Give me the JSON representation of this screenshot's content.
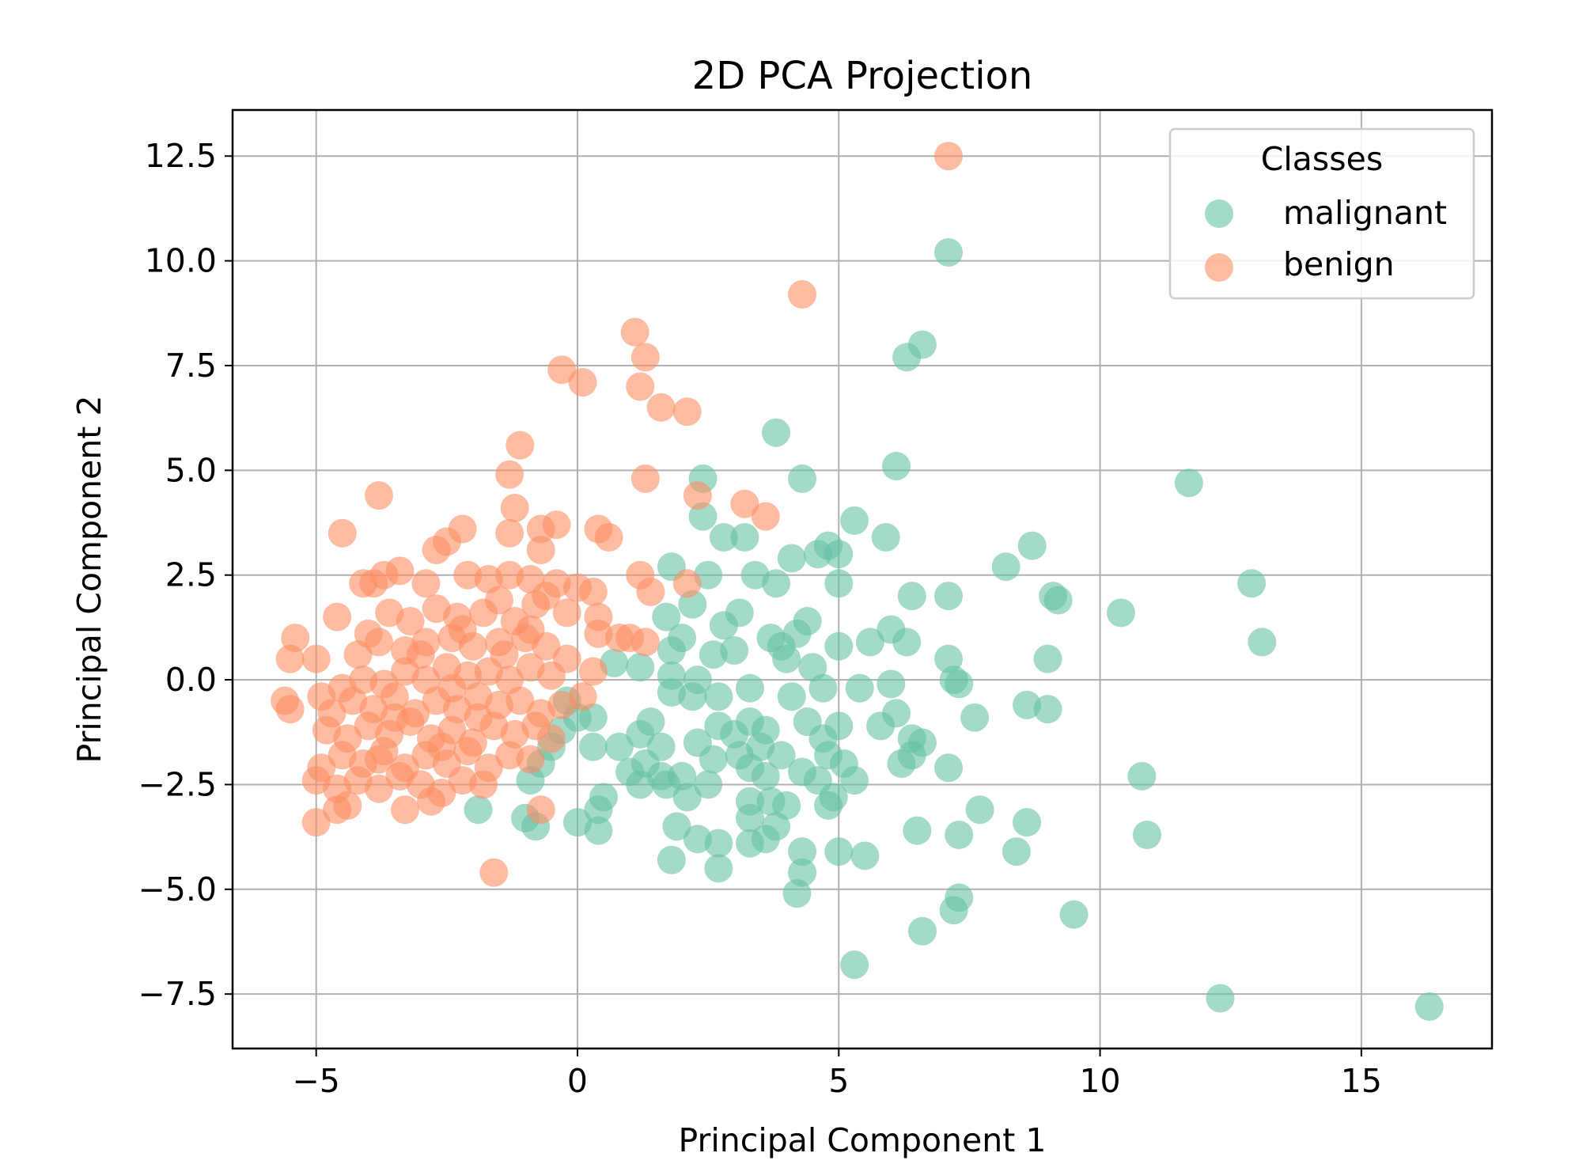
{
  "chart_data": {
    "type": "scatter",
    "title": "2D PCA Projection",
    "xlabel": "Principal Component 1",
    "ylabel": "Principal Component 2",
    "xlim": [
      -6.6,
      17.5
    ],
    "ylim": [
      -8.8,
      13.6
    ],
    "xticks": [
      -5,
      0,
      5,
      10,
      15
    ],
    "xtick_labels": [
      "−5",
      "0",
      "5",
      "10",
      "15"
    ],
    "yticks": [
      -7.5,
      -5.0,
      -2.5,
      0.0,
      2.5,
      5.0,
      7.5,
      10.0,
      12.5
    ],
    "ytick_labels": [
      "−7.5",
      "−5.0",
      "−2.5",
      "0.0",
      "2.5",
      "5.0",
      "7.5",
      "10.0",
      "12.5"
    ],
    "grid": true,
    "legend_title": "Classes",
    "legend_position": "top-right",
    "series": [
      {
        "name": "malignant",
        "color": "#66c2a5",
        "points": [
          [
            7.1,
            10.2
          ],
          [
            6.6,
            8.0
          ],
          [
            6.3,
            7.7
          ],
          [
            3.8,
            5.9
          ],
          [
            2.4,
            4.8
          ],
          [
            4.3,
            4.8
          ],
          [
            6.1,
            5.1
          ],
          [
            11.7,
            4.7
          ],
          [
            2.4,
            3.9
          ],
          [
            2.8,
            3.4
          ],
          [
            3.2,
            3.4
          ],
          [
            5.3,
            3.8
          ],
          [
            5.9,
            3.4
          ],
          [
            8.7,
            3.2
          ],
          [
            4.8,
            3.2
          ],
          [
            4.6,
            3.0
          ],
          [
            5.0,
            3.0
          ],
          [
            4.1,
            2.9
          ],
          [
            8.2,
            2.7
          ],
          [
            1.8,
            2.7
          ],
          [
            2.5,
            2.5
          ],
          [
            3.4,
            2.5
          ],
          [
            3.8,
            2.3
          ],
          [
            5.0,
            2.3
          ],
          [
            12.9,
            2.3
          ],
          [
            6.4,
            2.0
          ],
          [
            7.1,
            2.0
          ],
          [
            9.1,
            2.0
          ],
          [
            9.2,
            1.9
          ],
          [
            10.4,
            1.6
          ],
          [
            2.2,
            1.8
          ],
          [
            3.1,
            1.6
          ],
          [
            1.7,
            1.5
          ],
          [
            4.4,
            1.4
          ],
          [
            2.8,
            1.3
          ],
          [
            3.7,
            1.0
          ],
          [
            4.2,
            1.1
          ],
          [
            5.6,
            0.9
          ],
          [
            6.3,
            0.9
          ],
          [
            13.1,
            0.9
          ],
          [
            5.0,
            0.8
          ],
          [
            6.0,
            1.2
          ],
          [
            2.0,
            1.0
          ],
          [
            3.0,
            0.7
          ],
          [
            3.9,
            0.8
          ],
          [
            1.8,
            0.7
          ],
          [
            2.6,
            0.6
          ],
          [
            4.0,
            0.5
          ],
          [
            4.5,
            0.3
          ],
          [
            1.2,
            0.3
          ],
          [
            0.7,
            0.4
          ],
          [
            9.0,
            0.5
          ],
          [
            7.1,
            0.5
          ],
          [
            7.2,
            0.0
          ],
          [
            7.3,
            -0.1
          ],
          [
            1.8,
            0.1
          ],
          [
            2.3,
            0.0
          ],
          [
            6.0,
            -0.1
          ],
          [
            3.3,
            -0.2
          ],
          [
            4.7,
            -0.2
          ],
          [
            5.4,
            -0.2
          ],
          [
            1.8,
            -0.3
          ],
          [
            2.2,
            -0.4
          ],
          [
            2.7,
            -0.4
          ],
          [
            4.1,
            -0.4
          ],
          [
            6.1,
            -0.8
          ],
          [
            7.6,
            -0.9
          ],
          [
            8.6,
            -0.6
          ],
          [
            9.0,
            -0.7
          ],
          [
            0.3,
            -0.9
          ],
          [
            1.4,
            -1.0
          ],
          [
            2.7,
            -1.1
          ],
          [
            3.3,
            -1.0
          ],
          [
            4.4,
            -1.0
          ],
          [
            5.0,
            -1.1
          ],
          [
            5.8,
            -1.1
          ],
          [
            1.2,
            -1.3
          ],
          [
            2.3,
            -1.5
          ],
          [
            3.0,
            -1.3
          ],
          [
            3.6,
            -1.2
          ],
          [
            4.7,
            -1.4
          ],
          [
            6.4,
            -1.4
          ],
          [
            6.6,
            -1.5
          ],
          [
            0.3,
            -1.6
          ],
          [
            0.8,
            -1.6
          ],
          [
            1.6,
            -1.6
          ],
          [
            2.6,
            -1.9
          ],
          [
            3.1,
            -1.8
          ],
          [
            3.5,
            -1.6
          ],
          [
            3.9,
            -1.8
          ],
          [
            4.8,
            -1.8
          ],
          [
            5.1,
            -2.0
          ],
          [
            6.2,
            -2.0
          ],
          [
            6.4,
            -1.8
          ],
          [
            7.1,
            -2.1
          ],
          [
            1.0,
            -2.2
          ],
          [
            1.3,
            -2.0
          ],
          [
            1.6,
            -2.3
          ],
          [
            2.0,
            -2.3
          ],
          [
            3.3,
            -2.1
          ],
          [
            3.6,
            -2.3
          ],
          [
            4.3,
            -2.2
          ],
          [
            4.6,
            -2.4
          ],
          [
            5.3,
            -2.4
          ],
          [
            1.2,
            -2.5
          ],
          [
            1.7,
            -2.5
          ],
          [
            2.5,
            -2.5
          ],
          [
            2.1,
            -2.8
          ],
          [
            3.3,
            -2.9
          ],
          [
            3.7,
            -2.9
          ],
          [
            4.0,
            -3.0
          ],
          [
            4.9,
            -2.8
          ],
          [
            4.8,
            -3.0
          ],
          [
            -1.9,
            -3.1
          ],
          [
            -1.0,
            -3.3
          ],
          [
            -0.8,
            -3.5
          ],
          [
            0.0,
            -3.4
          ],
          [
            0.4,
            -3.1
          ],
          [
            0.4,
            -3.6
          ],
          [
            0.5,
            -2.8
          ],
          [
            1.9,
            -3.5
          ],
          [
            2.3,
            -3.8
          ],
          [
            2.7,
            -3.9
          ],
          [
            3.3,
            -3.3
          ],
          [
            3.8,
            -3.5
          ],
          [
            6.5,
            -3.6
          ],
          [
            7.3,
            -3.7
          ],
          [
            7.7,
            -3.1
          ],
          [
            8.4,
            -4.1
          ],
          [
            8.6,
            -3.4
          ],
          [
            10.8,
            -2.3
          ],
          [
            10.9,
            -3.7
          ],
          [
            1.8,
            -4.3
          ],
          [
            2.7,
            -4.5
          ],
          [
            3.3,
            -3.9
          ],
          [
            3.6,
            -3.8
          ],
          [
            4.3,
            -4.1
          ],
          [
            4.3,
            -4.6
          ],
          [
            4.2,
            -5.1
          ],
          [
            5.0,
            -4.1
          ],
          [
            5.5,
            -4.2
          ],
          [
            7.3,
            -5.2
          ],
          [
            7.2,
            -5.5
          ],
          [
            6.6,
            -6.0
          ],
          [
            9.5,
            -5.6
          ],
          [
            5.3,
            -6.8
          ],
          [
            12.3,
            -7.6
          ],
          [
            16.3,
            -7.8
          ],
          [
            -0.7,
            -2.0
          ],
          [
            -0.9,
            -2.4
          ],
          [
            -0.5,
            -1.6
          ],
          [
            -0.3,
            -1.2
          ],
          [
            0.0,
            -0.9
          ],
          [
            -0.2,
            -0.5
          ]
        ]
      },
      {
        "name": "benign",
        "color": "#fc8d62",
        "points": [
          [
            7.1,
            12.5
          ],
          [
            4.3,
            9.2
          ],
          [
            1.1,
            8.3
          ],
          [
            1.3,
            7.7
          ],
          [
            -0.3,
            7.4
          ],
          [
            0.1,
            7.1
          ],
          [
            1.2,
            7.0
          ],
          [
            1.6,
            6.5
          ],
          [
            2.1,
            6.4
          ],
          [
            -1.1,
            5.6
          ],
          [
            -1.3,
            4.9
          ],
          [
            1.3,
            4.8
          ],
          [
            -3.8,
            4.4
          ],
          [
            2.3,
            4.4
          ],
          [
            3.2,
            4.2
          ],
          [
            3.6,
            3.9
          ],
          [
            -4.5,
            3.5
          ],
          [
            -1.2,
            4.1
          ],
          [
            -1.3,
            3.5
          ],
          [
            -0.7,
            3.6
          ],
          [
            -0.4,
            3.7
          ],
          [
            0.4,
            3.6
          ],
          [
            0.6,
            3.4
          ],
          [
            -2.2,
            3.6
          ],
          [
            -2.5,
            3.3
          ],
          [
            -2.7,
            3.1
          ],
          [
            -0.7,
            3.1
          ],
          [
            -3.4,
            2.6
          ],
          [
            -3.7,
            2.5
          ],
          [
            -4.1,
            2.3
          ],
          [
            -3.9,
            2.3
          ],
          [
            -2.9,
            2.3
          ],
          [
            -2.1,
            2.5
          ],
          [
            -1.7,
            2.4
          ],
          [
            -1.3,
            2.5
          ],
          [
            -0.9,
            2.4
          ],
          [
            -0.4,
            2.3
          ],
          [
            0.3,
            2.1
          ],
          [
            1.2,
            2.5
          ],
          [
            1.4,
            2.1
          ],
          [
            2.1,
            2.3
          ],
          [
            -4.6,
            1.5
          ],
          [
            -4.0,
            1.1
          ],
          [
            -3.6,
            1.6
          ],
          [
            -3.2,
            1.4
          ],
          [
            -2.7,
            1.7
          ],
          [
            -2.3,
            1.5
          ],
          [
            -1.8,
            1.6
          ],
          [
            -1.2,
            1.4
          ],
          [
            -0.8,
            1.8
          ],
          [
            -0.2,
            1.6
          ],
          [
            0.4,
            1.5
          ],
          [
            0.4,
            1.1
          ],
          [
            1.0,
            1.0
          ],
          [
            1.3,
            0.9
          ],
          [
            -5.4,
            1.0
          ],
          [
            -5.5,
            0.5
          ],
          [
            -5.0,
            0.5
          ],
          [
            -4.2,
            0.6
          ],
          [
            -3.8,
            0.9
          ],
          [
            -3.3,
            0.7
          ],
          [
            -2.9,
            0.9
          ],
          [
            -2.4,
            1.0
          ],
          [
            -2.0,
            0.8
          ],
          [
            -1.5,
            0.9
          ],
          [
            -1.0,
            1.0
          ],
          [
            -0.6,
            0.8
          ],
          [
            -0.2,
            0.5
          ],
          [
            0.3,
            0.2
          ],
          [
            -4.9,
            -0.4
          ],
          [
            -4.5,
            -0.2
          ],
          [
            -4.1,
            0.0
          ],
          [
            -3.7,
            -0.1
          ],
          [
            -3.3,
            0.2
          ],
          [
            -2.9,
            0.0
          ],
          [
            -2.5,
            0.3
          ],
          [
            -2.1,
            0.1
          ],
          [
            -1.7,
            0.2
          ],
          [
            -1.3,
            0.0
          ],
          [
            -0.9,
            0.3
          ],
          [
            -0.5,
            0.1
          ],
          [
            0.1,
            -0.4
          ],
          [
            -5.6,
            -0.5
          ],
          [
            -5.5,
            -0.7
          ],
          [
            -4.7,
            -0.8
          ],
          [
            -4.3,
            -0.5
          ],
          [
            -3.9,
            -0.7
          ],
          [
            -3.5,
            -0.4
          ],
          [
            -3.1,
            -0.8
          ],
          [
            -2.7,
            -0.5
          ],
          [
            -2.3,
            -0.7
          ],
          [
            -1.9,
            -0.4
          ],
          [
            -1.5,
            -0.6
          ],
          [
            -1.1,
            -0.5
          ],
          [
            -0.7,
            -0.8
          ],
          [
            -0.3,
            -0.6
          ],
          [
            -4.8,
            -1.2
          ],
          [
            -4.4,
            -1.4
          ],
          [
            -4.0,
            -1.1
          ],
          [
            -3.6,
            -1.3
          ],
          [
            -3.2,
            -1.0
          ],
          [
            -2.8,
            -1.4
          ],
          [
            -2.4,
            -1.2
          ],
          [
            -2.0,
            -1.5
          ],
          [
            -1.6,
            -1.1
          ],
          [
            -1.2,
            -1.3
          ],
          [
            -0.8,
            -1.1
          ],
          [
            -0.5,
            -1.4
          ],
          [
            -4.9,
            -2.1
          ],
          [
            -4.5,
            -1.8
          ],
          [
            -4.1,
            -2.0
          ],
          [
            -3.7,
            -1.7
          ],
          [
            -3.3,
            -2.1
          ],
          [
            -2.9,
            -1.8
          ],
          [
            -2.5,
            -2.0
          ],
          [
            -2.1,
            -1.7
          ],
          [
            -1.7,
            -2.1
          ],
          [
            -1.3,
            -1.8
          ],
          [
            -0.9,
            -1.9
          ],
          [
            -5.0,
            -2.4
          ],
          [
            -4.6,
            -2.6
          ],
          [
            -4.2,
            -2.4
          ],
          [
            -3.8,
            -2.6
          ],
          [
            -3.4,
            -2.3
          ],
          [
            -3.0,
            -2.5
          ],
          [
            -2.6,
            -2.7
          ],
          [
            -2.2,
            -2.4
          ],
          [
            -1.8,
            -2.5
          ],
          [
            -4.4,
            -3.0
          ],
          [
            -4.6,
            -3.1
          ],
          [
            -5.0,
            -3.4
          ],
          [
            -3.3,
            -3.1
          ],
          [
            -2.8,
            -2.9
          ],
          [
            -0.7,
            -3.1
          ],
          [
            -1.6,
            -4.6
          ],
          [
            -3.8,
            -1.9
          ],
          [
            -2.6,
            -1.6
          ],
          [
            -1.9,
            -0.9
          ],
          [
            -3.0,
            0.6
          ],
          [
            -2.2,
            1.2
          ],
          [
            -1.5,
            1.9
          ],
          [
            -0.9,
            1.2
          ],
          [
            -3.5,
            -0.9
          ],
          [
            -2.4,
            -0.2
          ],
          [
            -1.4,
            0.6
          ],
          [
            -0.6,
            2.0
          ],
          [
            0.0,
            2.2
          ],
          [
            0.8,
            1.0
          ]
        ]
      }
    ]
  }
}
